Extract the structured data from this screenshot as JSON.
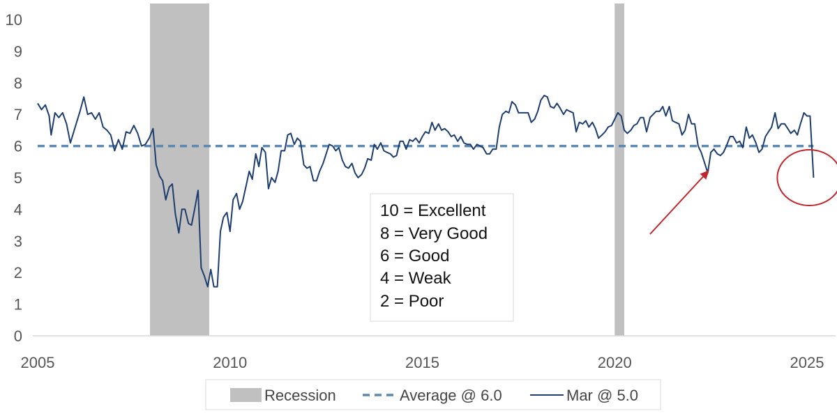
{
  "chart_data": {
    "type": "line",
    "xlim": [
      2005,
      2026
    ],
    "ylim": [
      0,
      10.5
    ],
    "x_ticks": [
      "2005",
      "2010",
      "2015",
      "2020",
      "2025"
    ],
    "y_ticks": [
      "0",
      "1",
      "2",
      "3",
      "4",
      "5",
      "6",
      "7",
      "8",
      "9",
      "10"
    ],
    "colors": {
      "line": "#1c3d6e",
      "average": "#5b87b0",
      "recession": "#c0c0c0",
      "annotation": "#c0272d"
    },
    "recessions": [
      {
        "start": 2007.92,
        "end": 2009.46
      },
      {
        "start": 2020.0,
        "end": 2020.25
      }
    ],
    "average": {
      "label": "Average @ 6.0",
      "value": 6.0
    },
    "series": [
      {
        "name": "Mar @ 5.0",
        "points": [
          [
            2005.0,
            7.35
          ],
          [
            2005.1,
            7.15
          ],
          [
            2005.2,
            7.3
          ],
          [
            2005.3,
            6.95
          ],
          [
            2005.35,
            6.35
          ],
          [
            2005.45,
            7.05
          ],
          [
            2005.55,
            6.9
          ],
          [
            2005.65,
            7.05
          ],
          [
            2005.75,
            6.7
          ],
          [
            2005.85,
            6.1
          ],
          [
            2005.95,
            6.5
          ],
          [
            2006.1,
            7.1
          ],
          [
            2006.2,
            7.55
          ],
          [
            2006.3,
            7.0
          ],
          [
            2006.4,
            7.05
          ],
          [
            2006.5,
            6.85
          ],
          [
            2006.6,
            7.05
          ],
          [
            2006.7,
            6.6
          ],
          [
            2006.8,
            6.5
          ],
          [
            2006.9,
            6.35
          ],
          [
            2007.0,
            5.85
          ],
          [
            2007.1,
            6.2
          ],
          [
            2007.2,
            5.9
          ],
          [
            2007.3,
            6.45
          ],
          [
            2007.4,
            6.4
          ],
          [
            2007.5,
            6.65
          ],
          [
            2007.6,
            6.4
          ],
          [
            2007.7,
            6.0
          ],
          [
            2007.8,
            6.05
          ],
          [
            2007.9,
            6.25
          ],
          [
            2008.0,
            6.55
          ],
          [
            2008.08,
            5.4
          ],
          [
            2008.17,
            5.05
          ],
          [
            2008.25,
            4.9
          ],
          [
            2008.33,
            4.3
          ],
          [
            2008.42,
            4.7
          ],
          [
            2008.5,
            4.8
          ],
          [
            2008.58,
            3.85
          ],
          [
            2008.67,
            3.25
          ],
          [
            2008.75,
            4.0
          ],
          [
            2008.83,
            4.0
          ],
          [
            2008.92,
            3.55
          ],
          [
            2009.0,
            3.5
          ],
          [
            2009.08,
            4.0
          ],
          [
            2009.17,
            4.6
          ],
          [
            2009.25,
            2.15
          ],
          [
            2009.33,
            1.9
          ],
          [
            2009.42,
            1.55
          ],
          [
            2009.5,
            2.1
          ],
          [
            2009.58,
            1.55
          ],
          [
            2009.67,
            1.55
          ],
          [
            2009.75,
            3.3
          ],
          [
            2009.83,
            3.75
          ],
          [
            2009.92,
            3.9
          ],
          [
            2010.0,
            3.3
          ],
          [
            2010.08,
            4.3
          ],
          [
            2010.17,
            4.5
          ],
          [
            2010.25,
            4.0
          ],
          [
            2010.33,
            4.25
          ],
          [
            2010.42,
            4.75
          ],
          [
            2010.5,
            5.2
          ],
          [
            2010.58,
            4.95
          ],
          [
            2010.67,
            5.75
          ],
          [
            2010.75,
            5.35
          ],
          [
            2010.83,
            5.95
          ],
          [
            2010.92,
            5.8
          ],
          [
            2011.0,
            4.65
          ],
          [
            2011.08,
            5.0
          ],
          [
            2011.17,
            4.85
          ],
          [
            2011.25,
            5.2
          ],
          [
            2011.33,
            5.85
          ],
          [
            2011.42,
            5.85
          ],
          [
            2011.5,
            6.35
          ],
          [
            2011.58,
            6.4
          ],
          [
            2011.67,
            6.05
          ],
          [
            2011.75,
            6.25
          ],
          [
            2011.83,
            6.15
          ],
          [
            2011.92,
            5.4
          ],
          [
            2012.0,
            5.3
          ],
          [
            2012.08,
            5.35
          ],
          [
            2012.17,
            4.9
          ],
          [
            2012.25,
            4.9
          ],
          [
            2012.33,
            5.2
          ],
          [
            2012.42,
            5.45
          ],
          [
            2012.5,
            5.75
          ],
          [
            2012.58,
            6.05
          ],
          [
            2012.67,
            6.0
          ],
          [
            2012.75,
            5.85
          ],
          [
            2012.83,
            5.95
          ],
          [
            2012.92,
            5.55
          ],
          [
            2013.0,
            5.35
          ],
          [
            2013.08,
            5.3
          ],
          [
            2013.17,
            5.45
          ],
          [
            2013.25,
            5.15
          ],
          [
            2013.33,
            5.0
          ],
          [
            2013.42,
            5.1
          ],
          [
            2013.5,
            5.3
          ],
          [
            2013.58,
            5.6
          ],
          [
            2013.67,
            5.55
          ],
          [
            2013.75,
            6.05
          ],
          [
            2013.83,
            5.9
          ],
          [
            2013.92,
            6.1
          ],
          [
            2014.0,
            5.85
          ],
          [
            2014.08,
            5.8
          ],
          [
            2014.17,
            5.75
          ],
          [
            2014.25,
            5.65
          ],
          [
            2014.33,
            5.7
          ],
          [
            2014.42,
            6.15
          ],
          [
            2014.5,
            6.15
          ],
          [
            2014.58,
            5.9
          ],
          [
            2014.67,
            6.2
          ],
          [
            2014.75,
            6.15
          ],
          [
            2014.83,
            6.25
          ],
          [
            2014.92,
            6.1
          ],
          [
            2015.0,
            6.3
          ],
          [
            2015.08,
            6.45
          ],
          [
            2015.17,
            6.4
          ],
          [
            2015.25,
            6.75
          ],
          [
            2015.33,
            6.5
          ],
          [
            2015.42,
            6.7
          ],
          [
            2015.5,
            6.5
          ],
          [
            2015.58,
            6.55
          ],
          [
            2015.67,
            6.45
          ],
          [
            2015.75,
            6.3
          ],
          [
            2015.83,
            6.35
          ],
          [
            2015.92,
            6.15
          ],
          [
            2016.0,
            6.3
          ],
          [
            2016.08,
            6.1
          ],
          [
            2016.17,
            6.05
          ],
          [
            2016.25,
            6.05
          ],
          [
            2016.33,
            5.9
          ],
          [
            2016.42,
            6.05
          ],
          [
            2016.5,
            6.0
          ],
          [
            2016.58,
            5.95
          ],
          [
            2016.67,
            5.75
          ],
          [
            2016.75,
            5.75
          ],
          [
            2016.83,
            5.9
          ],
          [
            2016.92,
            5.9
          ],
          [
            2017.0,
            6.6
          ],
          [
            2017.08,
            7.0
          ],
          [
            2017.17,
            7.1
          ],
          [
            2017.25,
            7.05
          ],
          [
            2017.33,
            7.4
          ],
          [
            2017.42,
            7.3
          ],
          [
            2017.5,
            7.05
          ],
          [
            2017.58,
            7.05
          ],
          [
            2017.67,
            7.05
          ],
          [
            2017.75,
            7.05
          ],
          [
            2017.83,
            6.75
          ],
          [
            2017.92,
            6.85
          ],
          [
            2018.0,
            7.1
          ],
          [
            2018.08,
            7.45
          ],
          [
            2018.17,
            7.6
          ],
          [
            2018.25,
            7.55
          ],
          [
            2018.33,
            7.25
          ],
          [
            2018.42,
            7.2
          ],
          [
            2018.5,
            7.35
          ],
          [
            2018.58,
            7.2
          ],
          [
            2018.67,
            7.0
          ],
          [
            2018.75,
            7.15
          ],
          [
            2018.83,
            7.1
          ],
          [
            2018.92,
            7.05
          ],
          [
            2019.0,
            6.45
          ],
          [
            2019.08,
            6.75
          ],
          [
            2019.17,
            6.7
          ],
          [
            2019.25,
            6.8
          ],
          [
            2019.33,
            6.6
          ],
          [
            2019.42,
            6.75
          ],
          [
            2019.5,
            6.55
          ],
          [
            2019.58,
            6.25
          ],
          [
            2019.67,
            6.35
          ],
          [
            2019.75,
            6.45
          ],
          [
            2019.83,
            6.6
          ],
          [
            2019.92,
            6.65
          ],
          [
            2020.0,
            6.85
          ],
          [
            2020.08,
            7.05
          ],
          [
            2020.17,
            6.95
          ],
          [
            2020.25,
            6.5
          ],
          [
            2020.33,
            6.4
          ],
          [
            2020.42,
            6.5
          ],
          [
            2020.5,
            6.65
          ],
          [
            2020.58,
            6.7
          ],
          [
            2020.67,
            6.9
          ],
          [
            2020.75,
            6.9
          ],
          [
            2020.83,
            6.45
          ],
          [
            2020.92,
            6.9
          ],
          [
            2021.0,
            7.0
          ],
          [
            2021.08,
            7.1
          ],
          [
            2021.17,
            7.1
          ],
          [
            2021.25,
            7.25
          ],
          [
            2021.33,
            6.95
          ],
          [
            2021.42,
            7.25
          ],
          [
            2021.5,
            6.8
          ],
          [
            2021.58,
            6.75
          ],
          [
            2021.67,
            6.7
          ],
          [
            2021.75,
            6.35
          ],
          [
            2021.83,
            6.5
          ],
          [
            2021.92,
            7.0
          ],
          [
            2022.0,
            6.7
          ],
          [
            2022.08,
            6.7
          ],
          [
            2022.17,
            6.0
          ],
          [
            2022.25,
            5.8
          ],
          [
            2022.33,
            5.5
          ],
          [
            2022.42,
            5.15
          ],
          [
            2022.5,
            5.8
          ],
          [
            2022.58,
            5.9
          ],
          [
            2022.67,
            5.75
          ],
          [
            2022.75,
            5.7
          ],
          [
            2022.83,
            5.8
          ],
          [
            2022.92,
            6.05
          ],
          [
            2023.0,
            6.3
          ],
          [
            2023.08,
            6.3
          ],
          [
            2023.17,
            6.1
          ],
          [
            2023.25,
            6.15
          ],
          [
            2023.33,
            5.95
          ],
          [
            2023.42,
            6.6
          ],
          [
            2023.5,
            6.25
          ],
          [
            2023.58,
            6.35
          ],
          [
            2023.67,
            6.1
          ],
          [
            2023.75,
            5.8
          ],
          [
            2023.83,
            5.9
          ],
          [
            2023.92,
            6.3
          ],
          [
            2024.0,
            6.45
          ],
          [
            2024.08,
            6.6
          ],
          [
            2024.17,
            7.05
          ],
          [
            2024.25,
            6.55
          ],
          [
            2024.33,
            6.7
          ],
          [
            2024.42,
            6.7
          ],
          [
            2024.5,
            6.55
          ],
          [
            2024.58,
            6.4
          ],
          [
            2024.67,
            6.5
          ],
          [
            2024.75,
            6.35
          ],
          [
            2024.83,
            6.7
          ],
          [
            2024.92,
            7.05
          ],
          [
            2025.0,
            6.95
          ],
          [
            2025.08,
            6.95
          ],
          [
            2025.17,
            5.0
          ]
        ]
      }
    ],
    "legend": {
      "position": "bottom",
      "items": [
        "Recession",
        "Average @ 6.0",
        "Mar @ 5.0"
      ]
    },
    "annotation": {
      "lines": [
        "10 = Excellent",
        "8 = Very Good",
        "6 = Good",
        "4 = Weak",
        "2 = Poor"
      ]
    },
    "highlights": {
      "arrow_target": [
        2022.42,
        5.15
      ],
      "circle_center": [
        2025.17,
        5.0
      ]
    }
  }
}
